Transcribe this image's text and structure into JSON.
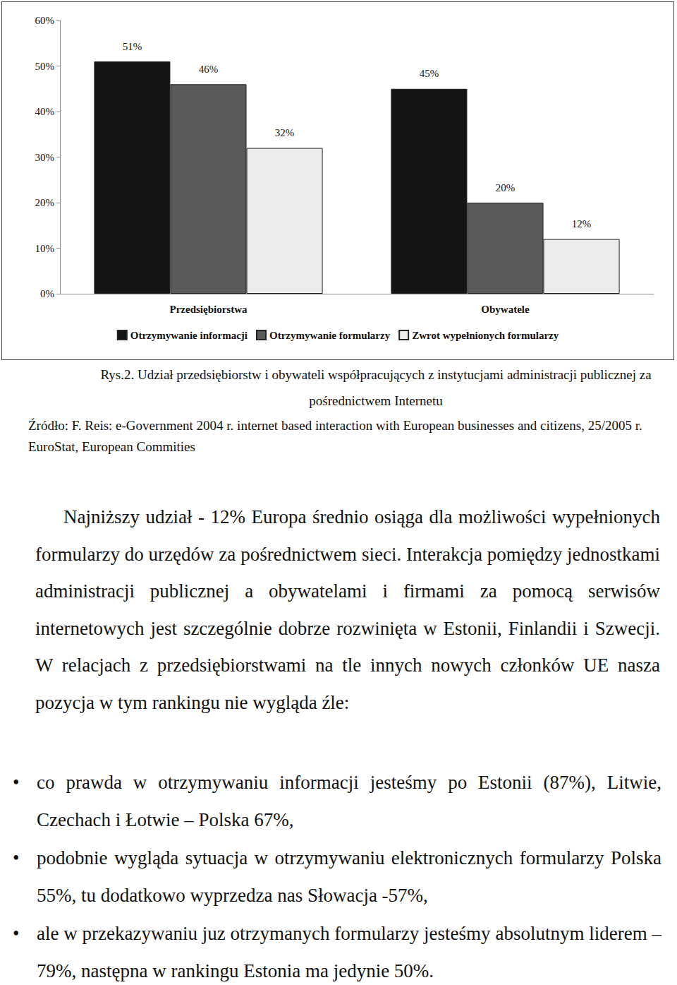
{
  "chart_data": {
    "type": "bar",
    "categories": [
      "Przedsiębiorstwa",
      "Obywatele"
    ],
    "series": [
      {
        "name": "Otrzymywanie informacji",
        "color": "#141414",
        "values": [
          51,
          45
        ],
        "value_labels": [
          "51%",
          "45%"
        ]
      },
      {
        "name": "Otrzymywanie formularzy",
        "color": "#5a5a5a",
        "values": [
          46,
          20
        ],
        "value_labels": [
          "46%",
          "20%"
        ]
      },
      {
        "name": "Zwrot wypełnionych formularzy",
        "color": "#ececec",
        "values": [
          32,
          12
        ],
        "value_labels": [
          "32%",
          "12%"
        ]
      }
    ],
    "ylim": [
      0,
      60
    ],
    "yticks": [
      {
        "value": 0,
        "label": "0%"
      },
      {
        "value": 10,
        "label": "10%"
      },
      {
        "value": 20,
        "label": "20%"
      },
      {
        "value": 30,
        "label": "30%"
      },
      {
        "value": 40,
        "label": "40%"
      },
      {
        "value": 50,
        "label": "50%"
      },
      {
        "value": 60,
        "label": "60%"
      }
    ],
    "grid": false,
    "legend": "bottom",
    "data_labels": true
  },
  "caption": "Rys.2. Udział przedsiębiorstw i obywateli współpracujących z instytucjami administracji publicznej za pośrednictwem Internetu",
  "source": "Źródło: F. Reis: e-Government 2004 r. internet based interaction with European businesses and citizens, 25/2005 r. EuroStat, European Commities",
  "paragraph": "Najniższy udział - 12% Europa średnio osiąga dla możliwości wypełnionych formularzy do urzędów za pośrednictwem sieci. Interakcja pomiędzy jednostkami administracji publicznej a obywatelami i firmami za pomocą serwisów internetowych jest szczególnie dobrze rozwinięta w Estonii, Finlandii i Szwecji. W relacjach z przedsiębiorstwami na tle innych nowych członków UE nasza pozycja w tym rankingu nie wygląda źle:",
  "bullets": [
    "co prawda w otrzymywaniu informacji jesteśmy po Estonii (87%), Litwie, Czechach i Łotwie – Polska 67%,",
    "podobnie wygląda sytuacja w otrzymywaniu elektronicznych formularzy Polska 55%, tu dodatkowo wyprzedza nas Słowacja -57%,",
    "ale w przekazywaniu juz otrzymanych formularzy jesteśmy absolutnym liderem – 79%, następna w rankingu Estonia ma jedynie 50%."
  ]
}
